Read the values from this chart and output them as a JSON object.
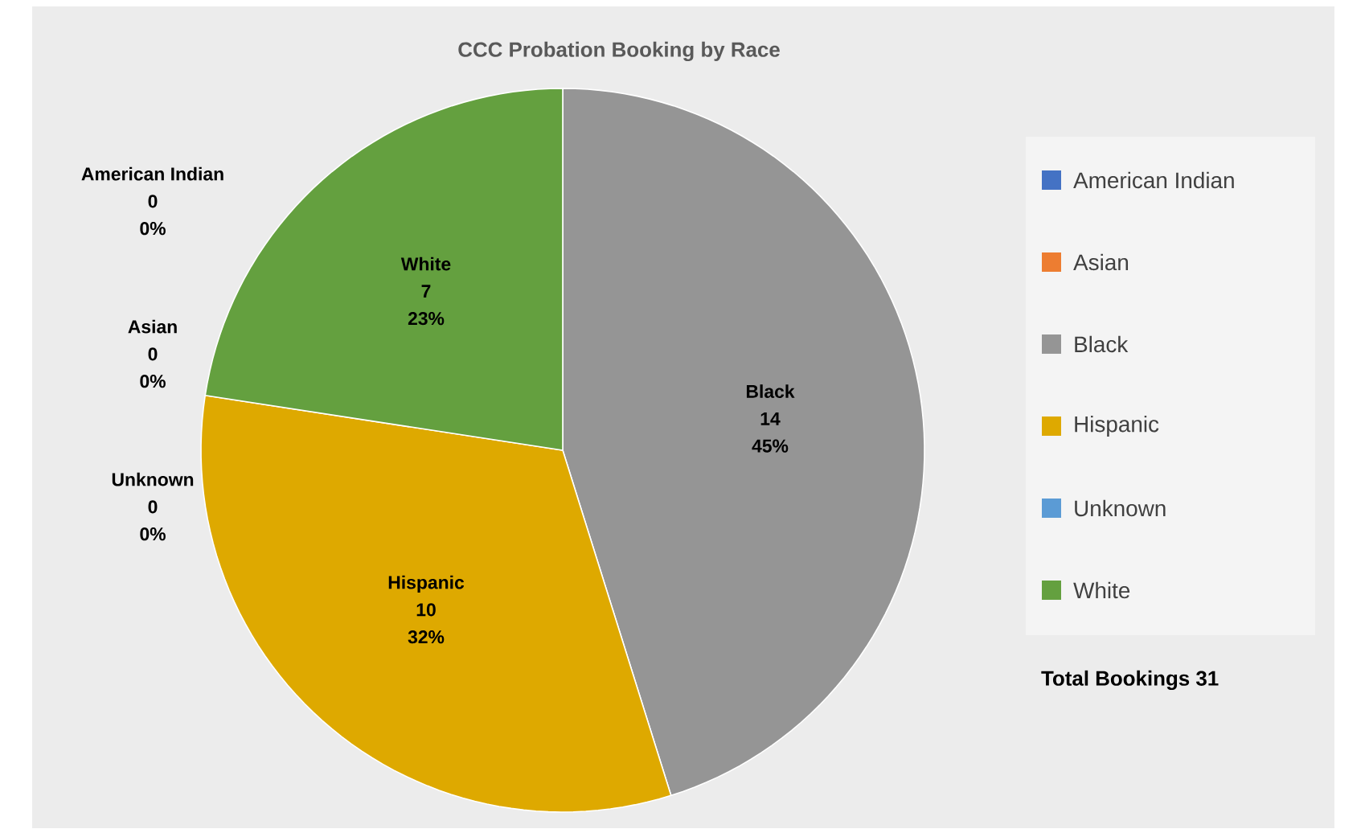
{
  "chart_data": {
    "type": "pie",
    "title": "CCC Probation Booking by Race",
    "categories": [
      "American Indian",
      "Asian",
      "Black",
      "Hispanic",
      "Unknown",
      "White"
    ],
    "values": [
      0,
      0,
      14,
      10,
      0,
      7
    ],
    "colors": [
      "#4472c4",
      "#ed7d31",
      "#959595",
      "#dea900",
      "#5b9bd5",
      "#64a03f"
    ],
    "value_labels": [
      "0",
      "0",
      "14",
      "10",
      "0",
      "7"
    ],
    "legend": "right",
    "annotations": [
      {
        "text": "0%",
        "x": "American Indian"
      },
      {
        "text": "0%",
        "x": "Asian"
      },
      {
        "text": "45%",
        "x": "Black"
      },
      {
        "text": "32%",
        "x": "Hispanic"
      },
      {
        "text": "0%",
        "x": "Unknown"
      },
      {
        "text": "23%",
        "x": "White"
      },
      "Total Bookings 31"
    ]
  }
}
